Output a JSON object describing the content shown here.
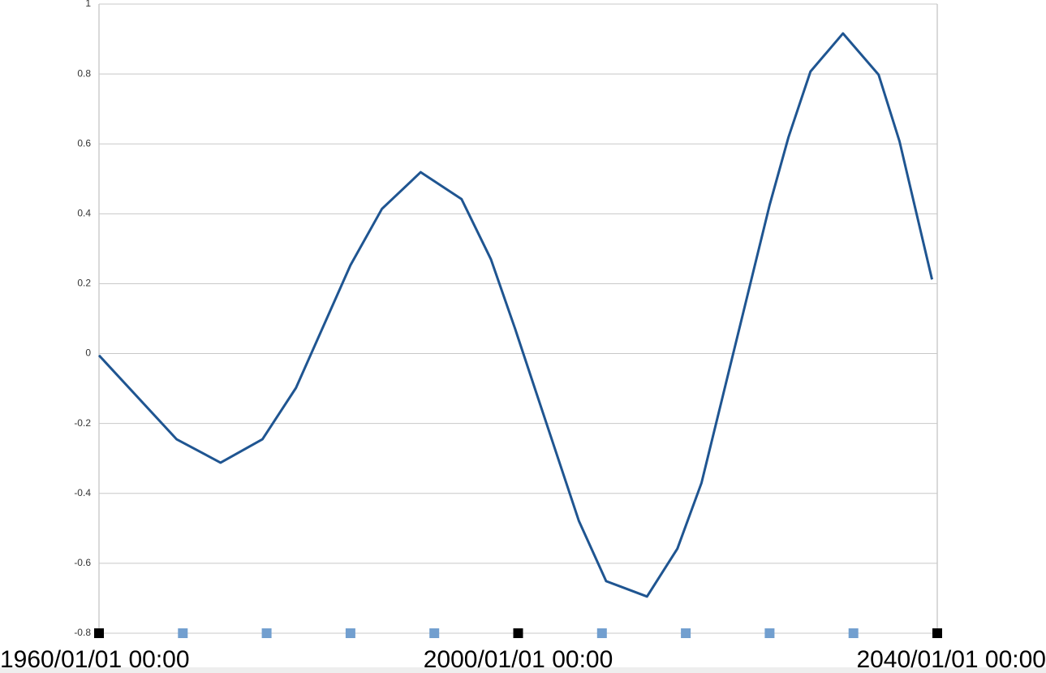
{
  "chart_data": {
    "type": "line",
    "x": [
      1960,
      1967.4,
      1971.6,
      1975.6,
      1978.8,
      1984.0,
      1987.0,
      1990.7,
      1994.6,
      1997.4,
      1999.7,
      2001.7,
      2005.8,
      2008.4,
      2012.3,
      2015.2,
      2017.5,
      2024.0,
      2025.8,
      2027.9,
      2031.0,
      2034.4,
      2036.4,
      2039.5
    ],
    "series": [
      {
        "color": "#1f5591",
        "values": [
          -0.005,
          -0.245,
          -0.312,
          -0.245,
          -0.098,
          0.253,
          0.414,
          0.519,
          0.442,
          0.27,
          0.072,
          -0.109,
          -0.479,
          -0.651,
          -0.695,
          -0.558,
          -0.37,
          0.425,
          0.619,
          0.807,
          0.916,
          0.798,
          0.607,
          0.212
        ]
      }
    ],
    "xlim": [
      1960,
      2040
    ],
    "xticks": [
      {
        "value": 1960,
        "label": "1960/01/01 00:00"
      },
      {
        "value": 2000,
        "label": "2000/01/01 00:00"
      },
      {
        "value": 2040,
        "label": "2040/01/01 00:00"
      }
    ],
    "xminorticks": [
      1968,
      1976,
      1984,
      1992,
      2008,
      2016,
      2024,
      2032
    ],
    "major_tick_color": "#000000",
    "minor_tick_color": "#729fcf",
    "ylim": [
      -0.8,
      1
    ],
    "yticks": [
      -0.8,
      -0.6,
      -0.4,
      -0.2,
      0,
      0.2,
      0.4,
      0.6,
      0.8,
      1
    ],
    "grid": true
  }
}
